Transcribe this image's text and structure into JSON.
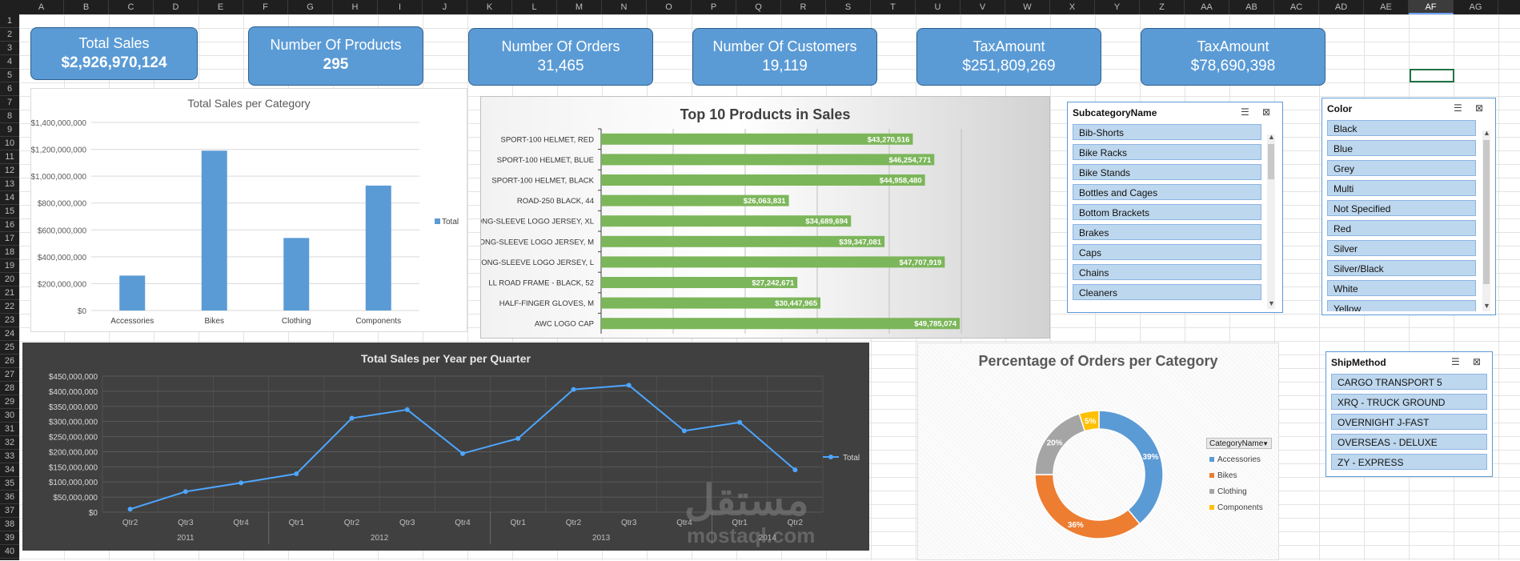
{
  "sheet": {
    "columns": [
      "A",
      "B",
      "C",
      "D",
      "E",
      "F",
      "G",
      "H",
      "I",
      "J",
      "K",
      "L",
      "M",
      "N",
      "O",
      "P",
      "Q",
      "R",
      "S",
      "T",
      "U",
      "V",
      "W",
      "X",
      "Y",
      "Z",
      "AA",
      "AB",
      "AC",
      "AD",
      "AE",
      "AF",
      "AG"
    ],
    "rows": [
      "1",
      "2",
      "3",
      "4",
      "5",
      "6",
      "7",
      "8",
      "9",
      "10",
      "11",
      "12",
      "13",
      "14",
      "15",
      "16",
      "17",
      "18",
      "19",
      "20",
      "21",
      "22",
      "23",
      "24",
      "25",
      "26",
      "27",
      "28",
      "29",
      "30",
      "31",
      "32",
      "33",
      "34",
      "35",
      "36",
      "37",
      "38",
      "39",
      "40"
    ],
    "selected_column": "AF",
    "selected_row": "5"
  },
  "kpis": [
    {
      "title": "Total Sales",
      "value": "$2,926,970,124"
    },
    {
      "title": "Number Of Products",
      "value": "295"
    },
    {
      "title": "Number Of Orders",
      "value": "31,465"
    },
    {
      "title": "Number Of Customers",
      "value": "19,119"
    },
    {
      "title": "TaxAmount",
      "value": "$251,809,269"
    },
    {
      "title": "TaxAmount",
      "value": "$78,690,398"
    }
  ],
  "chart_data": [
    {
      "type": "bar",
      "title": "Total Sales per Category",
      "categories": [
        "Accessories",
        "Bikes",
        "Clothing",
        "Components"
      ],
      "series": [
        {
          "name": "Total",
          "values": [
            260000000,
            1190000000,
            540000000,
            930000000
          ]
        }
      ],
      "ylim": [
        0,
        1400000000
      ],
      "yticks": [
        "$0",
        "$200,000,000",
        "$400,000,000",
        "$600,000,000",
        "$800,000,000",
        "$1,000,000,000",
        "$1,200,000,000",
        "$1,400,000,000"
      ],
      "legend": "right",
      "color": "#5b9bd5"
    },
    {
      "type": "bar",
      "title": "Top 10 Products in Sales",
      "categories": [
        "SPORT-100 HELMET, RED",
        "SPORT-100 HELMET, BLUE",
        "SPORT-100 HELMET, BLACK",
        "ROAD-250 BLACK, 44",
        "LONG-SLEEVE LOGO JERSEY, XL",
        "LONG-SLEEVE LOGO JERSEY, M",
        "LONG-SLEEVE LOGO JERSEY, L",
        "LL ROAD FRAME - BLACK, 52",
        "HALF-FINGER GLOVES, M",
        "AWC LOGO CAP"
      ],
      "values": [
        43270516,
        46254771,
        44958480,
        26063831,
        34689694,
        39347081,
        47707919,
        27242671,
        30447965,
        49785074
      ],
      "labels": [
        "$43,270,516",
        "$46,254,771",
        "$44,958,480",
        "$26,063,831",
        "$34,689,694",
        "$39,347,081",
        "$47,707,919",
        "$27,242,671",
        "$30,447,965",
        "$49,785,074"
      ],
      "xlim": [
        0,
        50000000
      ],
      "orientation": "horizontal",
      "color": "#7cb65a"
    },
    {
      "type": "line",
      "title": "Total Sales per Year per Quarter",
      "x": [
        "Qtr2",
        "Qtr3",
        "Qtr4",
        "Qtr1",
        "Qtr2",
        "Qtr3",
        "Qtr4",
        "Qtr1",
        "Qtr2",
        "Qtr3",
        "Qtr4",
        "Qtr1",
        "Qtr2"
      ],
      "years": [
        {
          "label": "2011",
          "count": 3
        },
        {
          "label": "2012",
          "count": 4
        },
        {
          "label": "2013",
          "count": 4
        },
        {
          "label": "2014",
          "count": 2
        }
      ],
      "series": [
        {
          "name": "Total",
          "values": [
            10000000,
            68000000,
            97000000,
            127000000,
            311000000,
            339000000,
            194000000,
            244000000,
            406000000,
            420000000,
            269000000,
            297000000,
            140000000
          ]
        }
      ],
      "ylim": [
        0,
        450000000
      ],
      "yticks": [
        "$0",
        "$50,000,000",
        "$100,000,000",
        "$150,000,000",
        "$200,000,000",
        "$250,000,000",
        "$300,000,000",
        "$350,000,000",
        "$400,000,000",
        "$450,000,000"
      ],
      "legend": "right",
      "color": "#4da6ff"
    },
    {
      "type": "pie",
      "title": "Percentage of Orders per Category",
      "legend_title": "CategoryName",
      "categories": [
        "Accessories",
        "Bikes",
        "Clothing",
        "Components"
      ],
      "values": [
        39,
        36,
        20,
        5
      ],
      "labels": [
        "39%",
        "36%",
        "20%",
        "5%"
      ],
      "colors": [
        "#5b9bd5",
        "#ed7d31",
        "#a5a5a5",
        "#ffc000"
      ],
      "donut": true
    }
  ],
  "slicers": {
    "subcategory": {
      "header": "SubcategoryName",
      "items": [
        "Bib-Shorts",
        "Bike Racks",
        "Bike Stands",
        "Bottles and Cages",
        "Bottom Brackets",
        "Brakes",
        "Caps",
        "Chains",
        "Cleaners"
      ]
    },
    "color": {
      "header": "Color",
      "items": [
        "Black",
        "Blue",
        "Grey",
        "Multi",
        "Not Specified",
        "Red",
        "Silver",
        "Silver/Black",
        "White",
        "Yellow"
      ]
    },
    "shipmethod": {
      "header": "ShipMethod",
      "items": [
        "CARGO TRANSPORT 5",
        "XRQ - TRUCK GROUND",
        "OVERNIGHT J-FAST",
        "OVERSEAS - DELUXE",
        "ZY - EXPRESS"
      ]
    }
  },
  "icons": {
    "multiselect": "multi-select-icon",
    "clear_filter": "clear-filter-icon"
  },
  "watermark": {
    "arabic": "مستقل",
    "latin": "mostaql.com"
  }
}
